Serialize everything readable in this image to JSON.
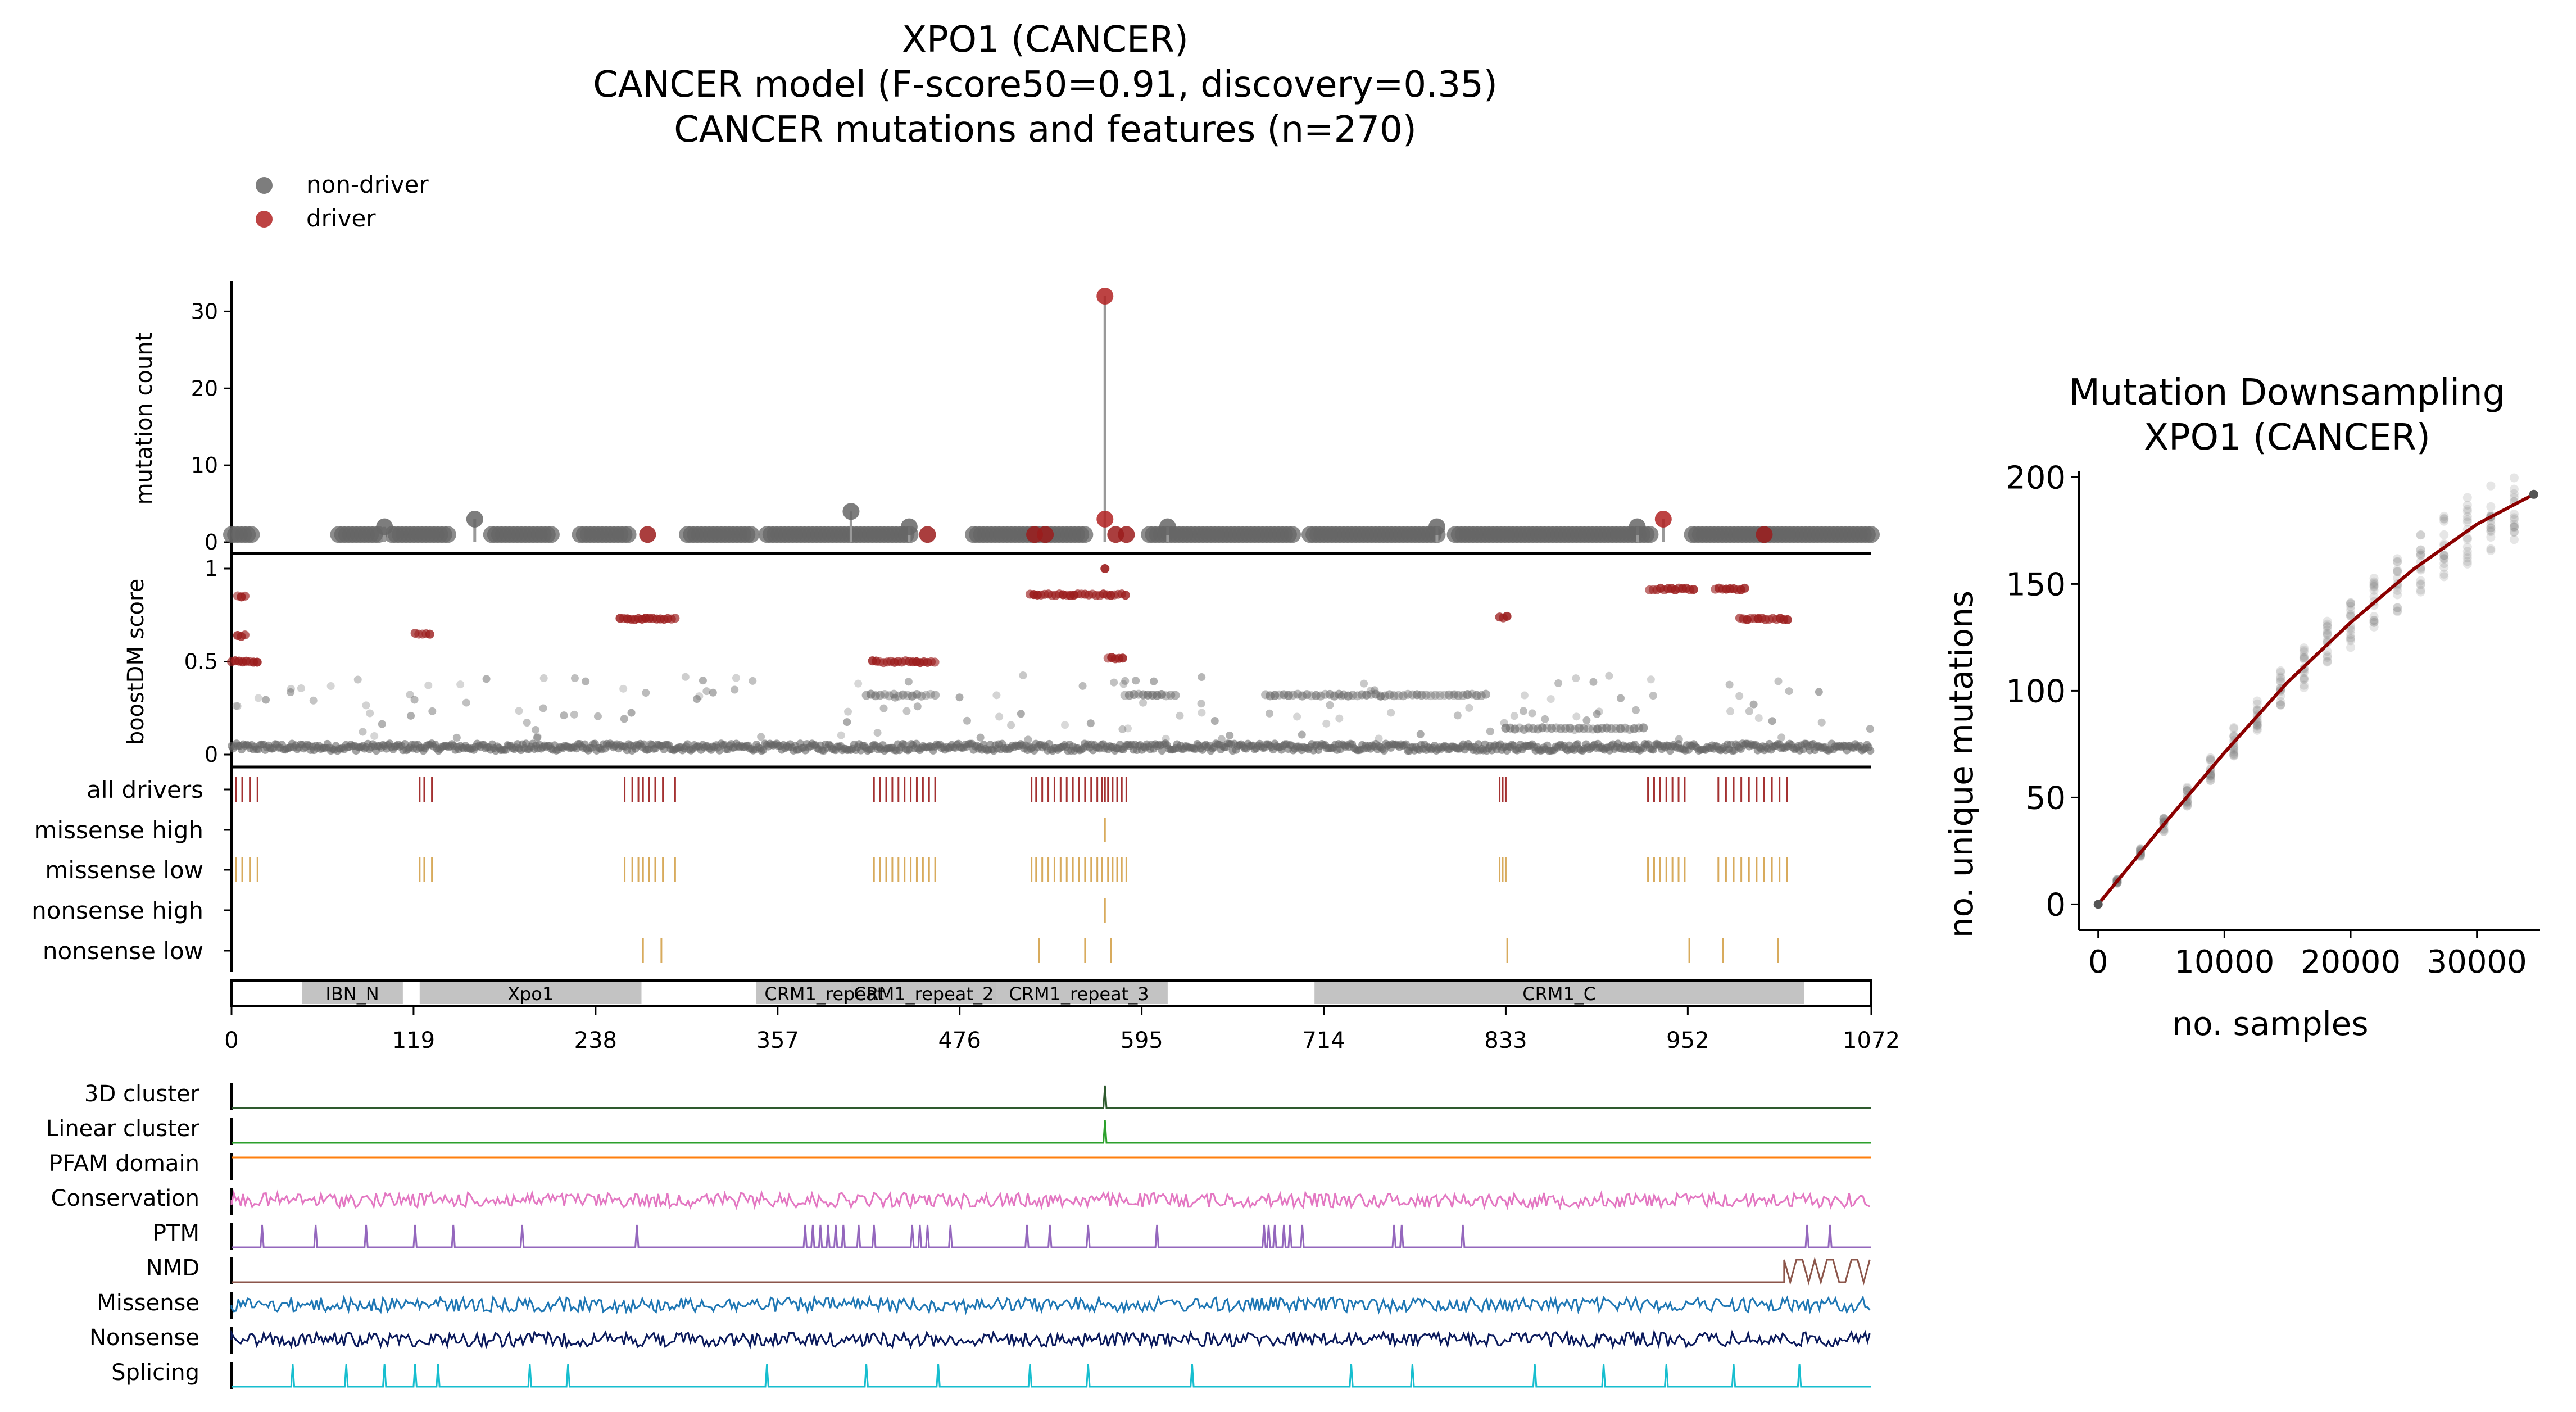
{
  "title": {
    "line1": "XPO1 (CANCER)",
    "line2": "CANCER model (F-score50=0.91, discovery=0.35)",
    "line3": "CANCER mutations and features (n=270)"
  },
  "legend": [
    {
      "label": "non-driver",
      "color": "#666666"
    },
    {
      "label": "driver",
      "color": "#b22222"
    }
  ],
  "colors": {
    "driver": "#9b1c1c",
    "nondriver": "#666666",
    "missense": "#d4a24c",
    "domain_fill": "#c0c0c0",
    "downsample_line": "#8b0000"
  },
  "chart_data": [
    {
      "type": "lollipop",
      "panel": "mutation-count",
      "ylabel": "mutation count",
      "yticks": [
        0,
        10,
        20,
        30
      ],
      "ylim": [
        0,
        32
      ],
      "xlim": [
        0,
        1072
      ],
      "xticks": [
        0,
        119,
        238,
        357,
        476,
        595,
        714,
        833,
        952,
        1072
      ],
      "peaks": [
        {
          "x": 571,
          "y": 32,
          "driver": true
        },
        {
          "x": 571,
          "y": 3,
          "driver": true
        },
        {
          "x": 405,
          "y": 4,
          "driver": false
        },
        {
          "x": 159,
          "y": 3,
          "driver": false
        },
        {
          "x": 936,
          "y": 3,
          "driver": true
        },
        {
          "x": 100,
          "y": 2,
          "driver": false
        },
        {
          "x": 443,
          "y": 2,
          "driver": false
        },
        {
          "x": 612,
          "y": 2,
          "driver": false
        },
        {
          "x": 788,
          "y": 2,
          "driver": false
        },
        {
          "x": 919,
          "y": 2,
          "driver": false
        }
      ],
      "baseline_driver_positions": [
        272,
        455,
        525,
        532,
        578,
        585,
        1002
      ],
      "baseline_ranges": [
        [
          0,
          14
        ],
        [
          70,
          96
        ],
        [
          105,
          143
        ],
        [
          170,
          210
        ],
        [
          228,
          260
        ],
        [
          298,
          340
        ],
        [
          350,
          445
        ],
        [
          485,
          560
        ],
        [
          600,
          695
        ],
        [
          705,
          790
        ],
        [
          800,
          930
        ],
        [
          955,
          1072
        ]
      ]
    },
    {
      "type": "scatter",
      "panel": "boostdm-score",
      "ylabel": "boostDM score",
      "yticks": [
        0,
        0.5,
        1
      ],
      "ylim": [
        0,
        1
      ],
      "clusters": [
        {
          "x0": 0,
          "x1": 18,
          "y": 0.5,
          "driver": true
        },
        {
          "x0": 4,
          "x1": 10,
          "y": 0.64,
          "driver": true
        },
        {
          "x0": 4,
          "x1": 10,
          "y": 0.85,
          "driver": true
        },
        {
          "x0": 120,
          "x1": 131,
          "y": 0.65,
          "driver": true
        },
        {
          "x0": 254,
          "x1": 290,
          "y": 0.73,
          "driver": true
        },
        {
          "x0": 419,
          "x1": 462,
          "y": 0.5,
          "driver": true
        },
        {
          "x0": 522,
          "x1": 585,
          "y": 0.86,
          "driver": true
        },
        {
          "x0": 573,
          "x1": 584,
          "y": 0.52,
          "driver": true
        },
        {
          "x0": 829,
          "x1": 836,
          "y": 0.74,
          "driver": true
        },
        {
          "x0": 927,
          "x1": 956,
          "y": 0.89,
          "driver": true
        },
        {
          "x0": 970,
          "x1": 990,
          "y": 0.89,
          "driver": true
        },
        {
          "x0": 986,
          "x1": 1018,
          "y": 0.73,
          "driver": true
        },
        {
          "x0": 415,
          "x1": 462,
          "y": 0.32,
          "driver": false
        },
        {
          "x0": 584,
          "x1": 617,
          "y": 0.32,
          "driver": false
        },
        {
          "x0": 676,
          "x1": 820,
          "y": 0.32,
          "driver": false
        },
        {
          "x0": 833,
          "x1": 925,
          "y": 0.14,
          "driver": false
        }
      ]
    },
    {
      "type": "rug",
      "panel": "driver-tracks",
      "rows": [
        {
          "label": "all drivers",
          "color": "#9b1c1c",
          "positions": [
            3,
            7,
            12,
            17,
            123,
            126,
            131,
            257,
            262,
            266,
            269,
            273,
            277,
            282,
            290,
            420,
            424,
            428,
            432,
            436,
            440,
            444,
            448,
            452,
            456,
            460,
            523,
            526,
            530,
            534,
            538,
            542,
            546,
            550,
            554,
            558,
            562,
            566,
            569,
            571,
            573,
            576,
            579,
            582,
            585,
            829,
            831,
            833,
            926,
            930,
            934,
            938,
            942,
            946,
            950,
            972,
            977,
            982,
            987,
            992,
            997,
            1002,
            1007,
            1012,
            1017
          ]
        },
        {
          "label": "missense high",
          "color": "#d4a24c",
          "positions": [
            571
          ]
        },
        {
          "label": "missense low",
          "color": "#d4a24c",
          "positions": [
            3,
            7,
            12,
            17,
            123,
            126,
            131,
            257,
            262,
            266,
            269,
            273,
            277,
            282,
            290,
            420,
            424,
            428,
            432,
            436,
            440,
            444,
            448,
            452,
            456,
            460,
            523,
            526,
            530,
            534,
            538,
            542,
            546,
            550,
            554,
            558,
            562,
            566,
            569,
            573,
            576,
            579,
            582,
            585,
            829,
            831,
            833,
            926,
            930,
            934,
            938,
            942,
            946,
            950,
            972,
            977,
            982,
            987,
            992,
            997,
            1002,
            1007,
            1012,
            1017
          ]
        },
        {
          "label": "nonsense high",
          "color": "#d4a24c",
          "positions": [
            571
          ]
        },
        {
          "label": "nonsense low",
          "color": "#d4a24c",
          "positions": [
            269,
            281,
            528,
            558,
            575,
            834,
            953,
            975,
            1011
          ]
        }
      ]
    },
    {
      "type": "domains",
      "panel": "protein-domains",
      "domains": [
        {
          "name": "IBN_N",
          "start": 46,
          "end": 112
        },
        {
          "name": "Xpo1",
          "start": 123,
          "end": 268
        },
        {
          "name": "CRM1_repeat",
          "start": 343,
          "end": 432
        },
        {
          "name": "CRM1_repeat_2",
          "start": 405,
          "end": 500
        },
        {
          "name": "CRM1_repeat_3",
          "start": 496,
          "end": 612
        },
        {
          "name": "CRM1_C",
          "start": 708,
          "end": 1028
        }
      ]
    },
    {
      "type": "line",
      "panel": "feature-tracks",
      "tracks": [
        {
          "label": "3D cluster",
          "color": "#2e5a2e",
          "kind": "spike",
          "positions": [
            571
          ]
        },
        {
          "label": "Linear cluster",
          "color": "#2ca02c",
          "kind": "spike",
          "positions": [
            571
          ]
        },
        {
          "label": "PFAM domain",
          "color": "#ff7f0e",
          "kind": "flat"
        },
        {
          "label": "Conservation",
          "color": "#e377c2",
          "kind": "noise"
        },
        {
          "label": "PTM",
          "color": "#9467bd",
          "kind": "spike",
          "positions": [
            20,
            55,
            88,
            120,
            145,
            190,
            265,
            375,
            380,
            385,
            390,
            395,
            400,
            410,
            420,
            445,
            450,
            455,
            470,
            520,
            535,
            560,
            605,
            675,
            678,
            682,
            688,
            692,
            700,
            760,
            765,
            805,
            1030,
            1045
          ]
        },
        {
          "label": "NMD",
          "color": "#8c564b",
          "kind": "nmd"
        },
        {
          "label": "Missense",
          "color": "#1f77b4",
          "kind": "noise"
        },
        {
          "label": "Nonsense",
          "color": "#0b1a5c",
          "kind": "noise"
        },
        {
          "label": "Splicing",
          "color": "#17becf",
          "kind": "spike",
          "positions": [
            40,
            75,
            100,
            120,
            135,
            195,
            220,
            350,
            415,
            462,
            522,
            560,
            628,
            732,
            772,
            852,
            897,
            938,
            982,
            1025
          ]
        }
      ]
    },
    {
      "type": "scatter",
      "panel": "downsampling",
      "title": "Mutation Downsampling",
      "subtitle": "XPO1 (CANCER)",
      "xlabel": "no. samples",
      "ylabel": "no. unique mutations",
      "xticks": [
        0,
        10000,
        20000,
        30000
      ],
      "yticks": [
        0,
        50,
        100,
        150,
        200
      ],
      "xlim": [
        -1500,
        35000
      ],
      "ylim": [
        -12,
        203
      ],
      "line_x": [
        0,
        5000,
        10000,
        15000,
        20000,
        25000,
        30000,
        34500
      ],
      "line_y": [
        0,
        36,
        71,
        104,
        132,
        157,
        178,
        192
      ]
    }
  ]
}
